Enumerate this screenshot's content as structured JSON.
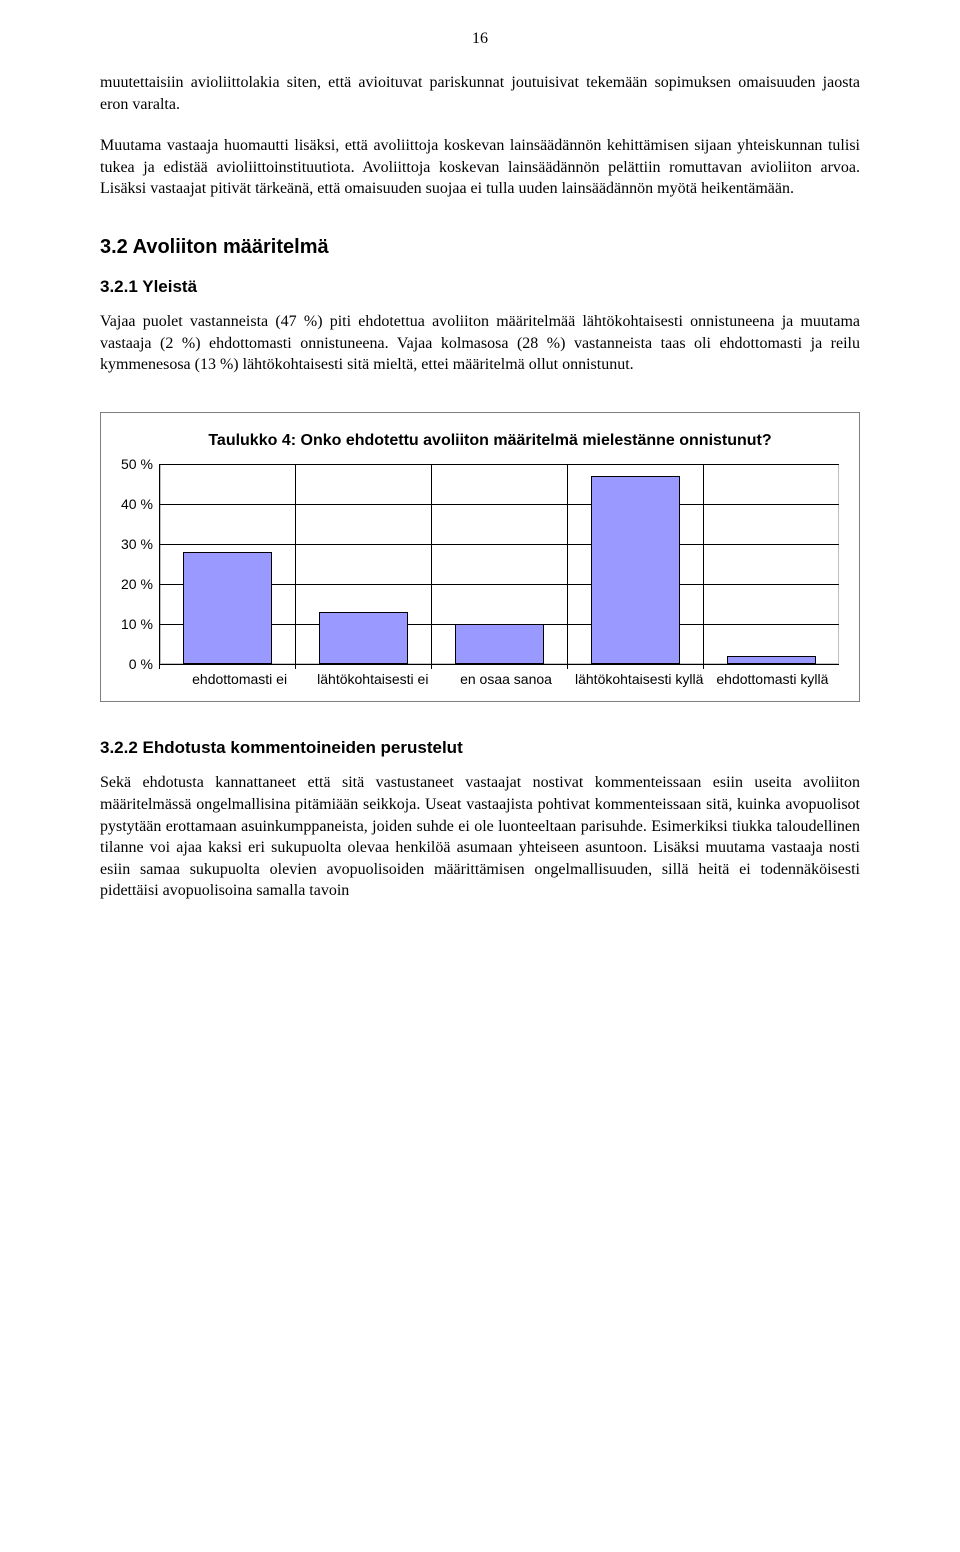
{
  "page_number": "16",
  "paragraphs": {
    "p1": "muutettaisiin avioliittolakia siten, että avioituvat pariskunnat joutuisivat tekemään sopimuksen omaisuuden jaosta eron varalta.",
    "p2": "Muutama vastaaja huomautti lisäksi, että avoliittoja koskevan lainsäädännön kehittämisen sijaan yhteiskunnan tulisi tukea ja edistää avioliittoinstituutiota. Avoliittoja koskevan lainsäädännön pelättiin romuttavan avioliiton arvoa. Lisäksi vastaajat pitivät tärkeänä, että omaisuuden suojaa ei tulla uuden lainsäädännön myötä heikentämään.",
    "p3": "Vajaa puolet vastanneista (47 %) piti ehdotettua avoliiton määritelmää lähtökohtaisesti onnistuneena ja muutama vastaaja (2 %) ehdottomasti onnistuneena. Vajaa kolmasosa (28 %) vastanneista taas oli ehdottomasti ja reilu kymmenesosa (13 %) lähtökohtaisesti sitä mieltä, ettei määritelmä ollut onnistunut.",
    "p4": "Sekä ehdotusta kannattaneet että sitä vastustaneet vastaajat nostivat kommenteissaan esiin useita avoliiton määritelmässä ongelmallisina pitämiään seikkoja. Useat vastaajista pohtivat kommenteissaan sitä, kuinka avopuolisot pystytään erottamaan asuinkumppaneista, joiden suhde ei ole luonteeltaan parisuhde. Esimerkiksi tiukka taloudellinen tilanne voi ajaa kaksi eri sukupuolta olevaa henkilöä asumaan yhteiseen asuntoon. Lisäksi muutama vastaaja nosti esiin samaa sukupuolta olevien avopuolisoiden määrittämisen ongelmallisuuden, sillä heitä ei todennäköisesti pidettäisi avopuolisoina samalla tavoin"
  },
  "headings": {
    "h2_1": "3.2 Avoliiton määritelmä",
    "h3_1": "3.2.1 Yleistä",
    "h3_2": "3.2.2 Ehdotusta kommentoineiden perustelut"
  },
  "chart": {
    "type": "bar",
    "title": "Taulukko 4: Onko ehdotettu avoliiton määritelmä mielestänne onnistunut?",
    "categories": [
      "ehdottomasti ei",
      "lähtökohtaisesti ei",
      "en osaa sanoa",
      "lähtökohtaisesti kyllä",
      "ehdottomasti kyllä"
    ],
    "values": [
      28,
      13,
      10,
      47,
      2
    ],
    "y_ticks": [
      "50 %",
      "40 %",
      "30 %",
      "20 %",
      "10 %",
      "0 %"
    ],
    "ylim_max": 50,
    "bar_fill": "#9999ff",
    "bar_border": "#000000",
    "grid_color": "#000000",
    "plot_bg": "#ffffff",
    "plot_border": "#c0c0c0",
    "box_border": "#7f7f7f",
    "title_fontsize": 16,
    "tick_fontsize": 14,
    "bar_width_ratio": 0.66
  }
}
